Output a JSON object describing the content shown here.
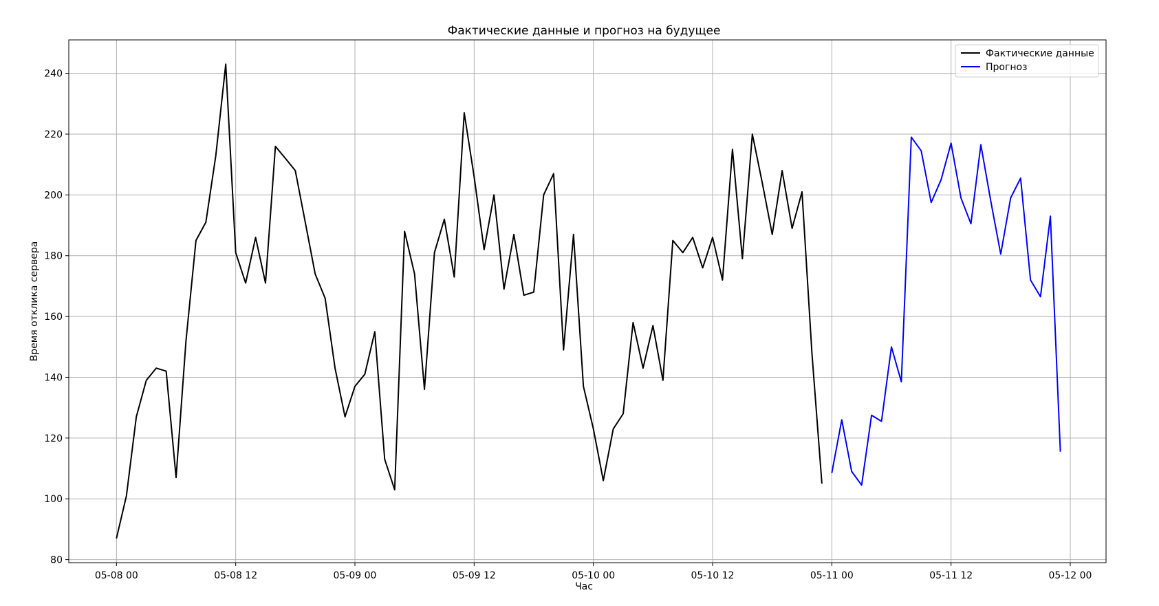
{
  "chart_data": {
    "type": "line",
    "title": "Фактические данные и прогноз на будущее",
    "xlabel": "Час",
    "ylabel": "Время отклика сервера",
    "x_axis": "datetime (hourly)",
    "x_ticks": [
      "05-08 00",
      "05-08 12",
      "05-09 00",
      "05-09 12",
      "05-10 00",
      "05-10 12",
      "05-11 00",
      "05-11 12",
      "05-12 00"
    ],
    "y_ticks": [
      80,
      100,
      120,
      140,
      160,
      180,
      200,
      220,
      240
    ],
    "xlim": [
      "05-07 19:12",
      "05-12 03:36"
    ],
    "ylim": [
      79,
      251
    ],
    "grid": true,
    "legend_position": "top-right",
    "series": [
      {
        "name": "Фактические данные",
        "color": "#000000",
        "x": [
          "05-08 00",
          "05-08 01",
          "05-08 02",
          "05-08 03",
          "05-08 04",
          "05-08 05",
          "05-08 06",
          "05-08 07",
          "05-08 08",
          "05-08 09",
          "05-08 10",
          "05-08 11",
          "05-08 12",
          "05-08 13",
          "05-08 14",
          "05-08 15",
          "05-08 16",
          "05-08 17",
          "05-08 18",
          "05-08 19",
          "05-08 20",
          "05-08 21",
          "05-08 22",
          "05-08 23",
          "05-09 00",
          "05-09 01",
          "05-09 02",
          "05-09 03",
          "05-09 04",
          "05-09 05",
          "05-09 06",
          "05-09 07",
          "05-09 08",
          "05-09 09",
          "05-09 10",
          "05-09 11",
          "05-09 12",
          "05-09 13",
          "05-09 14",
          "05-09 15",
          "05-09 16",
          "05-09 17",
          "05-09 18",
          "05-09 19",
          "05-09 20",
          "05-09 21",
          "05-09 22",
          "05-09 23",
          "05-10 00",
          "05-10 01",
          "05-10 02",
          "05-10 03",
          "05-10 04",
          "05-10 05",
          "05-10 06",
          "05-10 07",
          "05-10 08",
          "05-10 09",
          "05-10 10",
          "05-10 11",
          "05-10 12",
          "05-10 13",
          "05-10 14",
          "05-10 15",
          "05-10 16",
          "05-10 17",
          "05-10 18",
          "05-10 19",
          "05-10 20",
          "05-10 21",
          "05-10 22",
          "05-10 23"
        ],
        "values": [
          87,
          101,
          127,
          139,
          143,
          142,
          107,
          152,
          185,
          191,
          213,
          243,
          181,
          171,
          186,
          171,
          216,
          212,
          208,
          191,
          174,
          166,
          143,
          127,
          137,
          141,
          155,
          113,
          103,
          188,
          174,
          136,
          181,
          192,
          173,
          227,
          206,
          182,
          200,
          169,
          187,
          167,
          168,
          200,
          207,
          149,
          187,
          137,
          123,
          106,
          123,
          128,
          158,
          143,
          157,
          139,
          185,
          181,
          186,
          176,
          186,
          172,
          215,
          179,
          220,
          204,
          187,
          208,
          189,
          201,
          148,
          105
        ]
      },
      {
        "name": "Прогноз",
        "color": "#0000ff",
        "x": [
          "05-11 00",
          "05-11 01",
          "05-11 02",
          "05-11 03",
          "05-11 04",
          "05-11 05",
          "05-11 06",
          "05-11 07",
          "05-11 08",
          "05-11 09",
          "05-11 10",
          "05-11 11",
          "05-11 12",
          "05-11 13",
          "05-11 14",
          "05-11 15",
          "05-11 16",
          "05-11 17",
          "05-11 18",
          "05-11 19",
          "05-11 20",
          "05-11 21",
          "05-11 22",
          "05-11 23"
        ],
        "values": [
          108.5,
          126,
          109,
          104.5,
          127.5,
          125.5,
          150,
          138.5,
          219,
          214.5,
          197.5,
          205,
          217,
          199,
          190.5,
          216.5,
          198,
          180.5,
          199,
          205.5,
          172,
          166.5,
          193,
          115.5
        ]
      }
    ]
  }
}
